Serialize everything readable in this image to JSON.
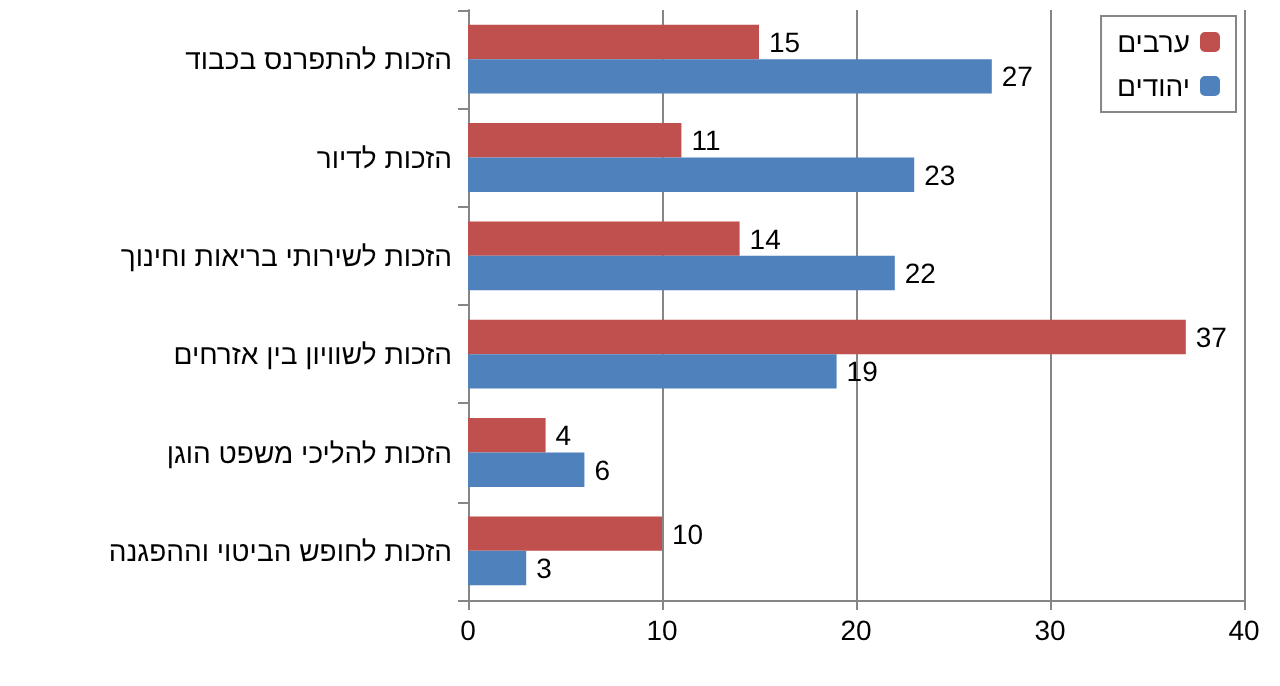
{
  "chart_data": {
    "type": "bar",
    "orientation": "horizontal",
    "categories": [
      "הזכות להתפרנס בכבוד",
      "הזכות לדיור",
      "הזכות לשירותי בריאות וחינוך",
      "הזכות לשוויון בין אזרחים",
      "הזכות להליכי משפט הוגן",
      "הזכות לחופש הביטוי וההפגנה"
    ],
    "series": [
      {
        "name": "ערבים",
        "color": "#c0504d",
        "values": [
          15,
          11,
          14,
          37,
          4,
          10
        ]
      },
      {
        "name": "יהודים",
        "color": "#4f81bd",
        "values": [
          27,
          23,
          22,
          19,
          6,
          3
        ]
      }
    ],
    "xlim": [
      0,
      40
    ],
    "xticks": [
      0,
      10,
      20,
      30,
      40
    ],
    "grid": "x",
    "legend": "top right",
    "data_labels": true
  }
}
